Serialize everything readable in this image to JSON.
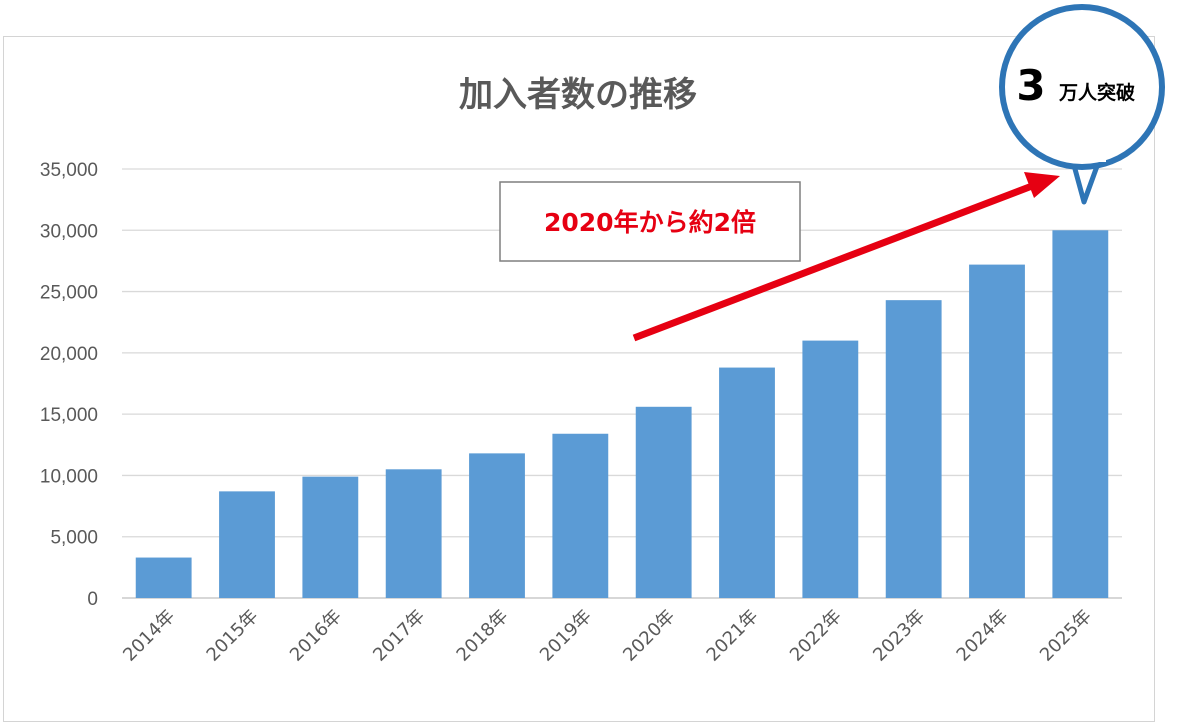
{
  "chart_data": {
    "type": "bar",
    "title": "加入者数の推移",
    "categories": [
      "2014年",
      "2015年",
      "2016年",
      "2017年",
      "2018年",
      "2019年",
      "2020年",
      "2021年",
      "2022年",
      "2023年",
      "2024年",
      "2025年"
    ],
    "values": [
      3300,
      8700,
      9900,
      10500,
      11800,
      13400,
      15600,
      18800,
      21000,
      24300,
      27200,
      30000
    ],
    "ylim": [
      0,
      35000
    ],
    "yticks": [
      "0",
      "5,000",
      "10,000",
      "15,000",
      "20,000",
      "25,000",
      "30,000",
      "35,000"
    ],
    "grid": true,
    "bar_color": "#5b9bd5",
    "annotations": {
      "growth_note": "2020年から約2倍",
      "growth_note_color": "#e60012",
      "milestone_number": "3",
      "milestone_text": "万人突破",
      "bubble_border_color": "#2e75b6"
    }
  }
}
